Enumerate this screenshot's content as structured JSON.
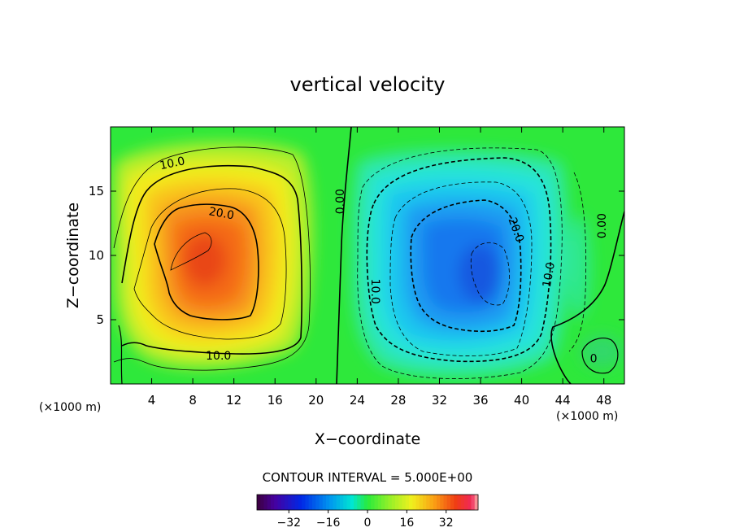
{
  "chart_data": {
    "type": "contour",
    "title": "vertical velocity",
    "xlabel": "X−coordinate",
    "ylabel": "Z−coordinate",
    "x_unit_left": "(×1000 m)",
    "x_unit_right": "(×1000 m)",
    "xlim": [
      0,
      50
    ],
    "ylim": [
      0,
      20
    ],
    "xticks": [
      4,
      8,
      12,
      16,
      20,
      24,
      28,
      32,
      36,
      40,
      44,
      48
    ],
    "yticks": [
      5,
      10,
      15
    ],
    "contour_interval_text": "CONTOUR INTERVAL = 5.000E+00",
    "contour_interval": 5,
    "cells": [
      {
        "name": "updraft",
        "center_x": 9.5,
        "center_z": 9.0,
        "peak": 32
      },
      {
        "name": "downdraft",
        "center_x": 36.0,
        "center_z": 9.0,
        "peak": -26
      }
    ],
    "contour_labels": [
      {
        "text": "10.0",
        "x": 6.0,
        "z": 17.2,
        "rotate": -12
      },
      {
        "text": "20.0",
        "x": 10.8,
        "z": 13.3,
        "rotate": 10
      },
      {
        "text": "10.0",
        "x": 10.5,
        "z": 2.2,
        "rotate": 0
      },
      {
        "text": "0.00",
        "x": 22.3,
        "z": 14.2,
        "rotate": -90
      },
      {
        "text": "10.0",
        "x": 25.8,
        "z": 7.2,
        "rotate": 90
      },
      {
        "text": "20.0",
        "x": 39.5,
        "z": 12.0,
        "rotate": 70
      },
      {
        "text": "10.0",
        "x": 42.6,
        "z": 8.5,
        "rotate": -80
      },
      {
        "text": "0.00",
        "x": 47.8,
        "z": 12.3,
        "rotate": -90
      },
      {
        "text": "0",
        "x": 47.0,
        "z": 2.0,
        "rotate": 0
      }
    ],
    "colorbar": {
      "min": -45,
      "max": 45,
      "ticks": [
        -32,
        -16,
        0,
        16,
        32
      ],
      "tick_labels": [
        "−32",
        "−16",
        "0",
        "16",
        "32"
      ]
    }
  }
}
